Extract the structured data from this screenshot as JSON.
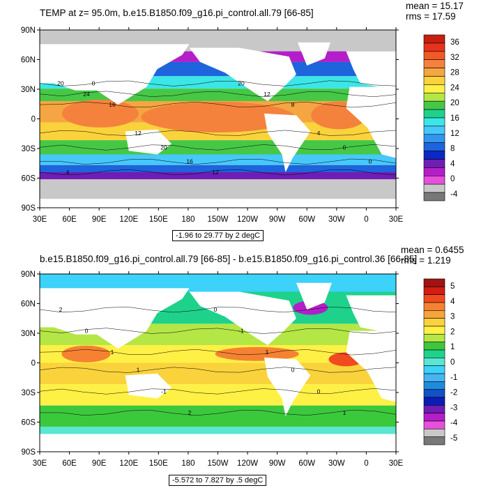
{
  "panels": [
    {
      "title": "TEMP at z=  95.0m, b.e15.B1850.f09_g16.pi_control.all.79 [66-85]",
      "stats": [
        "mean = 15.17",
        "rms = 17.59"
      ],
      "range_label": "-1.96 to 29.77 by 2 degC",
      "colorbar": {
        "labels": [
          "36",
          "32",
          "28",
          "24",
          "20",
          "16",
          "12",
          "8",
          "4",
          "0",
          "-4"
        ],
        "colors": [
          "#c81e0f",
          "#e8321e",
          "#f05a23",
          "#f5823c",
          "#f5a541",
          "#fad23c",
          "#fff046",
          "#b4e646",
          "#46c846",
          "#1ed28c",
          "#3ce6e6",
          "#46c8fa",
          "#3296f0",
          "#1e64dc",
          "#0a28c8",
          "#6e1eb4",
          "#b41ec8",
          "#e650dc",
          "#c8c8c8",
          "#787878"
        ]
      },
      "contour_labels": [
        "20",
        "24",
        "16",
        "12",
        "20",
        "16",
        "12",
        "20",
        "12",
        "8",
        "4",
        "0",
        "0",
        "4",
        "0"
      ]
    },
    {
      "title": "b.e15.B1850.f09_g16.pi_control.all.79 [66-85] - b.e15.B1850.f09_g16.pi_control.36 [66-85]",
      "stats": [
        "mean = 0.6455",
        "rms = 1.219"
      ],
      "range_label": "-5.572 to 7.827 by .5 degC",
      "colorbar": {
        "labels": [
          "5",
          "4",
          "3",
          "2",
          "1",
          "0",
          "-1",
          "-2",
          "-3",
          "-4",
          "-5"
        ],
        "colors": [
          "#a01414",
          "#d21e14",
          "#f04b1e",
          "#f58232",
          "#f5a53c",
          "#fad23c",
          "#fff046",
          "#b4e646",
          "#3cc83c",
          "#1ed28c",
          "#5ae6d2",
          "#3cd2fa",
          "#46b4f0",
          "#1e8cdc",
          "#1450c8",
          "#0a1eb4",
          "#6e1eb4",
          "#b41ec8",
          "#e650dc",
          "#c8c8c8",
          "#787878"
        ]
      },
      "contour_labels": [
        "2",
        "0",
        "1",
        "1",
        "-1",
        "2",
        "0",
        "-1",
        "1",
        "0",
        "0",
        "1"
      ]
    }
  ],
  "axes": {
    "lat_labels": [
      "90N",
      "60N",
      "30N",
      "0",
      "30S",
      "60S",
      "90S"
    ],
    "lon_labels": [
      "30E",
      "60E",
      "90E",
      "120E",
      "150E",
      "180",
      "150W",
      "120W",
      "90W",
      "60W",
      "30W",
      "0",
      "30E"
    ]
  },
  "colors": {
    "land": "#ffffff",
    "ice": "#c8c8c8"
  }
}
